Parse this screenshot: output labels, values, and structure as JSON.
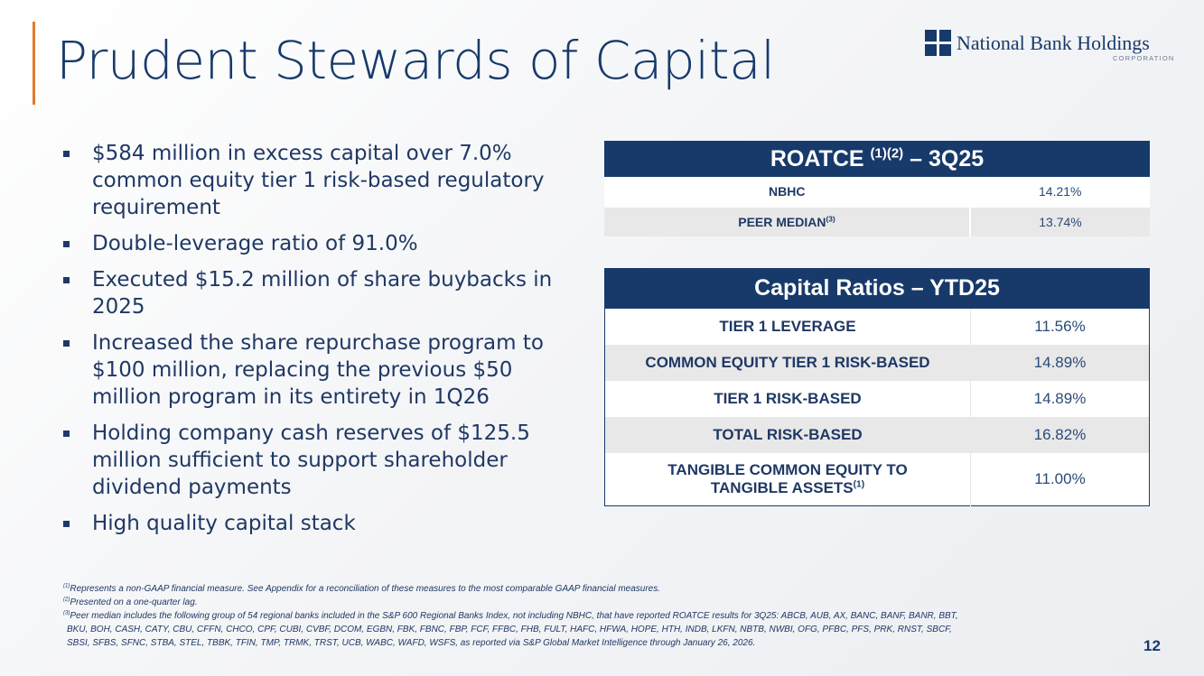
{
  "title": "Prudent Stewards of Capital",
  "logo": {
    "name": "National Bank Holdings",
    "sub": "CORPORATION"
  },
  "bullets": [
    "$584 million in excess capital over 7.0% common equity tier 1 risk-based regulatory requirement",
    "Double-leverage ratio of 91.0%",
    "Executed $15.2 million of share buybacks in 2025",
    "Increased the share repurchase program to $100 million, replacing the previous $50 million program in its entirety in 1Q26",
    "Holding company cash reserves of $125.5 million sufficient to support shareholder dividend payments",
    "High quality capital stack"
  ],
  "roatce": {
    "title_prefix": "ROATCE ",
    "title_sup": "(1)(2)",
    "title_suffix": " – 3Q25",
    "rows": [
      {
        "label": "NBHC",
        "sup": "",
        "value": "14.21%"
      },
      {
        "label": "PEER MEDIAN",
        "sup": "(3)",
        "value": "13.74%"
      }
    ]
  },
  "capital": {
    "title": "Capital Ratios – YTD25",
    "rows": [
      {
        "label": "TIER 1 LEVERAGE",
        "value": "11.56%"
      },
      {
        "label": "COMMON EQUITY TIER 1 RISK-BASED",
        "value": "14.89%"
      },
      {
        "label": "TIER 1 RISK-BASED",
        "value": "14.89%"
      },
      {
        "label": "TOTAL RISK-BASED",
        "value": "16.82%"
      }
    ],
    "last": {
      "line1": "TANGIBLE COMMON EQUITY TO",
      "line2": "TANGIBLE ASSETS",
      "sup": "(1)",
      "value": "11.00%"
    }
  },
  "footnotes": [
    {
      "mark": "(1)",
      "text": "Represents a non-GAAP financial measure.  See Appendix for a reconciliation of these measures to the most comparable GAAP financial measures."
    },
    {
      "mark": "(2)",
      "text": "Presented on a one-quarter lag."
    },
    {
      "mark": "(3)",
      "text": "Peer median includes the following group of 54 regional banks included in the S&P 600 Regional Banks Index, not including NBHC, that have reported ROATCE results for 3Q25: ABCB, AUB, AX, BANC, BANF, BANR, BBT,"
    }
  ],
  "footnote_cont": [
    "BKU, BOH, CASH, CATY, CBU, CFFN, CHCO, CPF, CUBI, CVBF, DCOM, EGBN, FBK, FBNC, FBP, FCF, FFBC, FHB, FULT, HAFC, HFWA, HOPE, HTH, INDB, LKFN, NBTB, NWBI, OFG, PFBC, PFS, PRK, RNST, SBCF,",
    "SBSI, SFBS, SFNC, STBA, STEL, TBBK, TFIN, TMP, TRMK, TRST, UCB, WABC, WAFD, WSFS, as reported via S&P Global Market Intelligence through January 26, 2026."
  ],
  "page_number": "12",
  "colors": {
    "navy": "#173a6b",
    "accent": "#e07a2f",
    "row_gray": "#e8e8e8"
  }
}
